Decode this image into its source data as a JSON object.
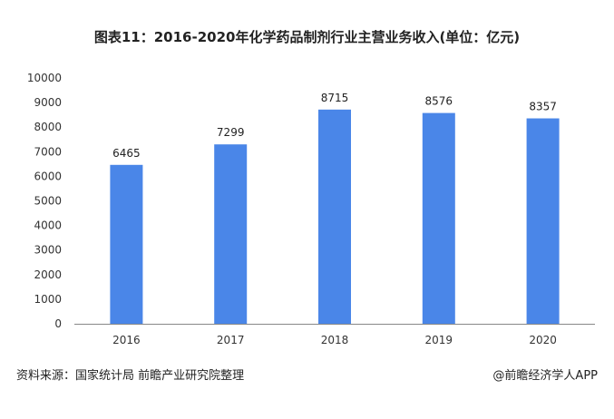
{
  "header": {
    "title": "图表11：2016-2020年化学药品制剂行业主营业务收入(单位：亿元)"
  },
  "footer": {
    "source": "资料来源：国家统计局 前瞻产业研究院整理",
    "brand": "@前瞻经济学人APP"
  },
  "colors": {
    "bar": "#4a86e8",
    "axis": "#888888"
  },
  "chart_data": {
    "type": "bar",
    "title": "图表11：2016-2020年化学药品制剂行业主营业务收入(单位：亿元)",
    "xlabel": "",
    "ylabel": "",
    "categories": [
      "2016",
      "2017",
      "2018",
      "2019",
      "2020"
    ],
    "values": [
      6465,
      7299,
      8715,
      8576,
      8357
    ],
    "data_labels": [
      "6465",
      "7299",
      "8715",
      "8576",
      "8357"
    ],
    "ylim": [
      0,
      10000
    ],
    "yticks": [
      "0",
      "1000",
      "2000",
      "3000",
      "4000",
      "5000",
      "6000",
      "7000",
      "8000",
      "9000",
      "10000"
    ],
    "grid": false,
    "legend": "none"
  }
}
